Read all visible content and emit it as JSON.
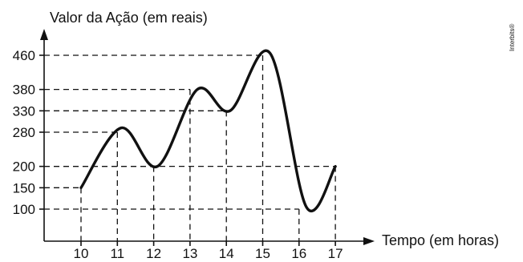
{
  "chart_data": {
    "type": "line",
    "ylabel": "Valor da Ação (em reais)",
    "xlabel": "Tempo (em horas)",
    "x_ticks": [
      10,
      11,
      12,
      13,
      14,
      15,
      16,
      17
    ],
    "y_ticks": [
      100,
      150,
      200,
      280,
      330,
      380,
      460
    ],
    "xlim": [
      9,
      18
    ],
    "ylim": [
      0,
      500
    ],
    "marked_points": [
      {
        "x": 10,
        "y": 150
      },
      {
        "x": 11,
        "y": 280
      },
      {
        "x": 12,
        "y": 200
      },
      {
        "x": 13,
        "y": 380
      },
      {
        "x": 14,
        "y": 330
      },
      {
        "x": 15,
        "y": 460
      },
      {
        "x": 16,
        "y": 100
      },
      {
        "x": 17,
        "y": 200
      }
    ],
    "curve": [
      {
        "x": 10,
        "y": 150
      },
      {
        "x": 11.1,
        "y": 290
      },
      {
        "x": 12.1,
        "y": 200
      },
      {
        "x": 13.2,
        "y": 380
      },
      {
        "x": 14.1,
        "y": 330
      },
      {
        "x": 15.2,
        "y": 465
      },
      {
        "x": 16.2,
        "y": 105
      },
      {
        "x": 17,
        "y": 200
      }
    ],
    "grid": false,
    "guides": "dashed drop lines from marked values to axes",
    "color": "#111111"
  },
  "watermark": "Interbits®"
}
